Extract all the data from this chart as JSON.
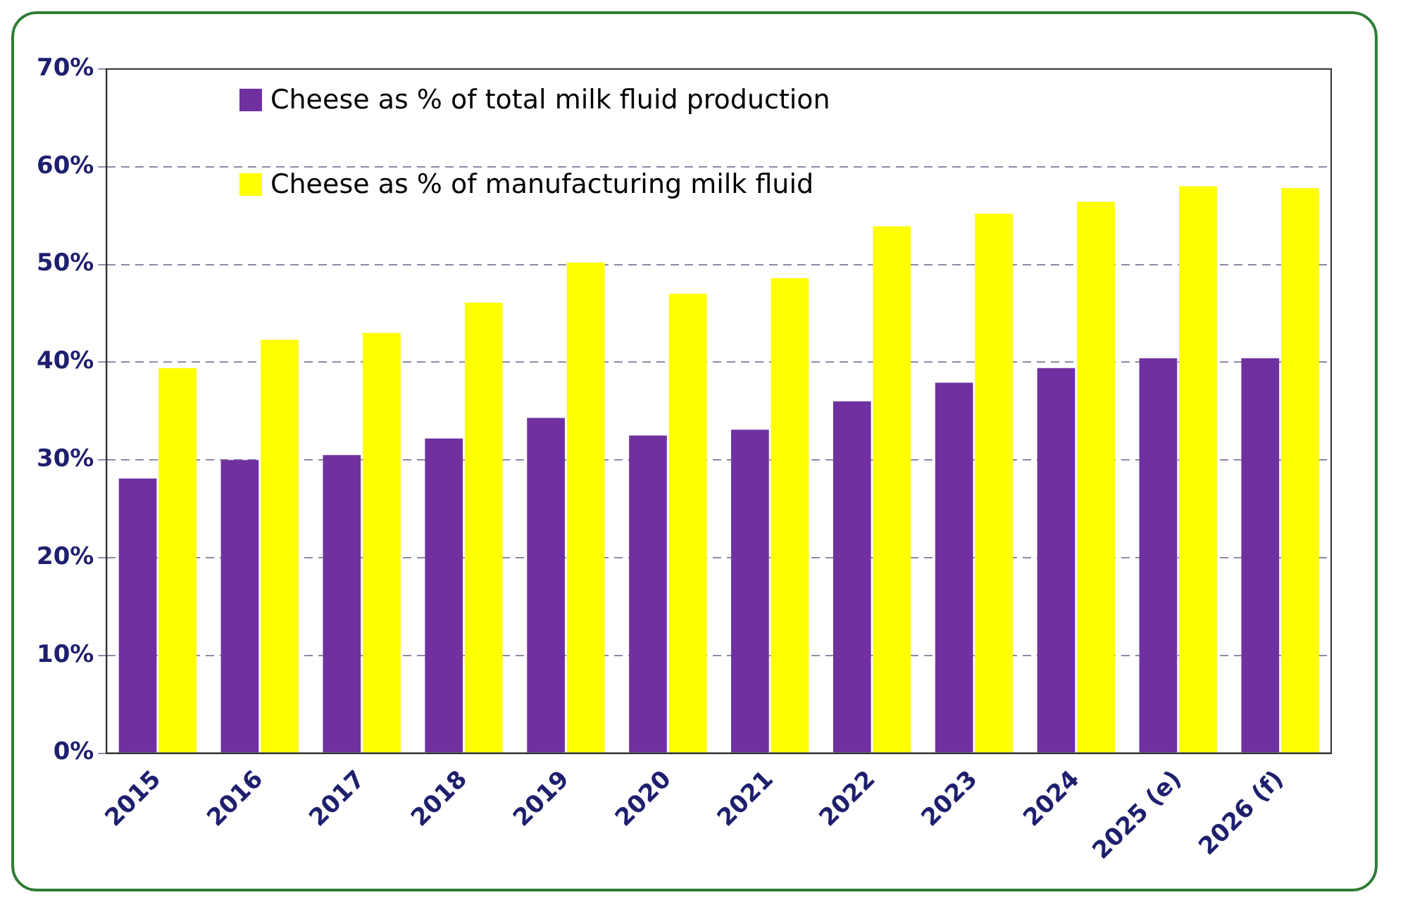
{
  "chart_data": {
    "type": "bar",
    "categories": [
      "2015",
      "2016",
      "2017",
      "2018",
      "2019",
      "2020",
      "2021",
      "2022",
      "2023",
      "2024",
      "2025 (e)",
      "2026 (f)"
    ],
    "series": [
      {
        "name": "Cheese as % of total milk fluid production",
        "color": "#7030a0",
        "values": [
          28.1,
          30.0,
          30.5,
          32.2,
          34.3,
          32.5,
          33.1,
          36.0,
          37.9,
          39.4,
          40.4,
          40.4
        ]
      },
      {
        "name": "Cheese as % of manufacturing milk fluid",
        "color": "#ffff00",
        "values": [
          39.4,
          42.3,
          43.0,
          46.1,
          50.2,
          47.0,
          48.6,
          53.9,
          55.2,
          56.4,
          58.0,
          57.8
        ]
      }
    ],
    "ylim": [
      0,
      70
    ],
    "yticks": [
      {
        "value": 0,
        "label": "0%"
      },
      {
        "value": 10,
        "label": "10%"
      },
      {
        "value": 20,
        "label": "20%"
      },
      {
        "value": 30,
        "label": "30%"
      },
      {
        "value": 40,
        "label": "40%"
      },
      {
        "value": 50,
        "label": "50%"
      },
      {
        "value": 60,
        "label": "60%"
      },
      {
        "value": 70,
        "label": "70%"
      }
    ],
    "grid": "y",
    "legend": "top left"
  }
}
